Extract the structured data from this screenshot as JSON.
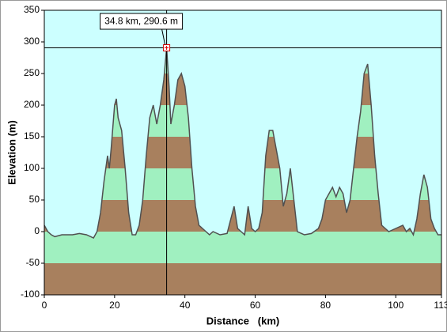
{
  "chart_data": {
    "type": "area",
    "xlabel": "Distance   (km)",
    "ylabel": "Elevation (m)",
    "x": [
      0,
      1,
      2,
      3,
      5,
      8,
      10,
      12,
      14,
      15,
      16,
      17,
      18,
      18.5,
      19,
      20,
      20.5,
      21,
      22,
      23,
      24,
      25,
      26,
      27,
      28,
      29,
      30,
      31,
      32,
      33,
      34,
      34.8,
      35.5,
      36,
      37,
      38,
      39,
      40,
      41,
      42,
      43,
      44,
      45,
      46,
      47,
      48,
      50,
      52,
      54,
      55,
      56,
      57,
      58,
      59,
      60,
      61,
      62,
      63,
      64,
      65,
      66,
      67,
      68,
      69,
      70,
      71,
      72,
      74,
      76,
      78,
      79,
      80,
      81,
      82,
      83,
      84,
      85,
      86,
      87,
      88,
      89,
      90,
      91,
      92,
      93,
      94,
      95,
      96,
      97,
      98,
      100,
      102,
      103,
      104,
      105,
      106,
      107,
      108,
      109,
      110,
      111,
      112,
      113
    ],
    "values": [
      10,
      0,
      -5,
      -8,
      -5,
      -5,
      -3,
      -5,
      -10,
      0,
      30,
      80,
      120,
      100,
      130,
      200,
      210,
      180,
      160,
      100,
      30,
      -5,
      -5,
      10,
      50,
      120,
      180,
      200,
      170,
      200,
      240,
      290.6,
      230,
      170,
      200,
      240,
      250,
      230,
      180,
      100,
      40,
      10,
      5,
      0,
      -5,
      0,
      -5,
      -3,
      40,
      5,
      0,
      -5,
      40,
      5,
      0,
      5,
      30,
      120,
      160,
      160,
      130,
      100,
      40,
      60,
      100,
      50,
      0,
      -5,
      -3,
      5,
      20,
      50,
      60,
      70,
      55,
      70,
      60,
      30,
      50,
      100,
      150,
      190,
      250,
      265,
      200,
      120,
      60,
      10,
      5,
      0,
      5,
      10,
      0,
      5,
      -5,
      20,
      60,
      90,
      70,
      20,
      5,
      -5,
      -5
    ],
    "line_color": "#505050",
    "fill_colors": [
      "#a8805e",
      "#a0f0c0"
    ],
    "background_color": "#ccffff",
    "xlim": [
      0,
      113
    ],
    "xticks": [
      0,
      20,
      40,
      60,
      80,
      100,
      113
    ],
    "ylim": [
      -100,
      350
    ],
    "yticks": [
      -100,
      -50,
      0,
      50,
      100,
      150,
      200,
      250,
      300,
      350
    ],
    "cursor": {
      "x": 34.8,
      "y": 290.6,
      "label": "34.8 km, 290.6 m"
    }
  }
}
